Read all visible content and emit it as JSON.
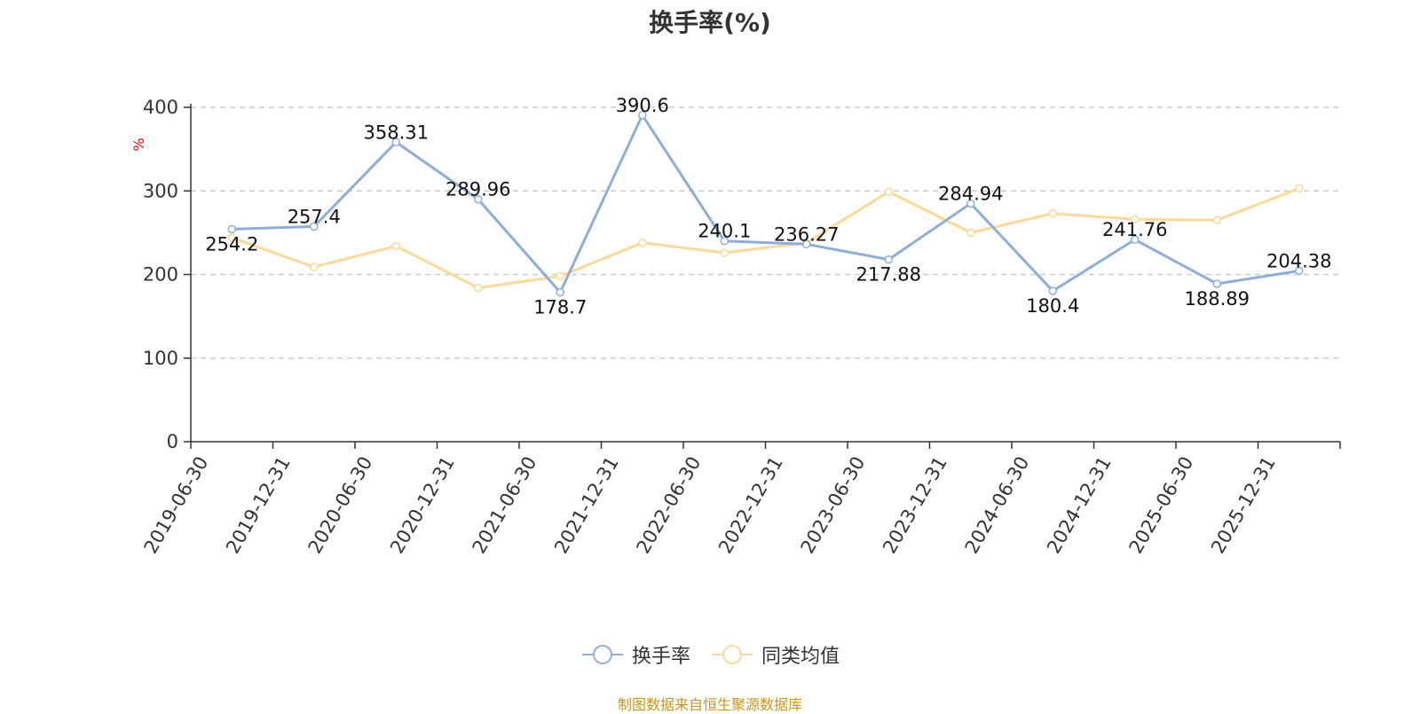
{
  "chart_data": {
    "type": "line",
    "title": "换手率(%)",
    "ylabel": "%",
    "xlabel": "",
    "ylim": [
      0,
      400
    ],
    "yticks": [
      0,
      100,
      200,
      300,
      400
    ],
    "grid": true,
    "legend_position": "bottom-center",
    "categories": [
      "2019-06-30",
      "2019-12-31",
      "2020-06-30",
      "2020-12-31",
      "2021-06-30",
      "2021-12-31",
      "2022-06-30",
      "2022-12-31",
      "2023-06-30",
      "2023-12-31",
      "2024-06-30",
      "2024-12-31",
      "2025-06-30",
      "2025-12-31"
    ],
    "series": [
      {
        "name": "换手率",
        "color": "#8eaed8",
        "values": [
          254.2,
          257.4,
          358.31,
          289.96,
          178.7,
          390.6,
          240.1,
          236.27,
          217.88,
          284.94,
          180.4,
          241.76,
          188.89,
          204.38
        ],
        "labels": [
          "254.2",
          "257.4",
          "358.31",
          "289.96",
          "178.7",
          "390.6",
          "240.1",
          "236.27",
          "217.88",
          "284.94",
          "180.4",
          "241.76",
          "188.89",
          "204.38"
        ]
      },
      {
        "name": "同类均值",
        "color": "#fbd99a",
        "values": [
          244,
          209,
          234,
          184,
          198,
          238,
          226,
          238,
          299,
          250,
          273,
          266,
          265,
          303
        ]
      }
    ]
  },
  "source_note": "制图数据来自恒生聚源数据库"
}
